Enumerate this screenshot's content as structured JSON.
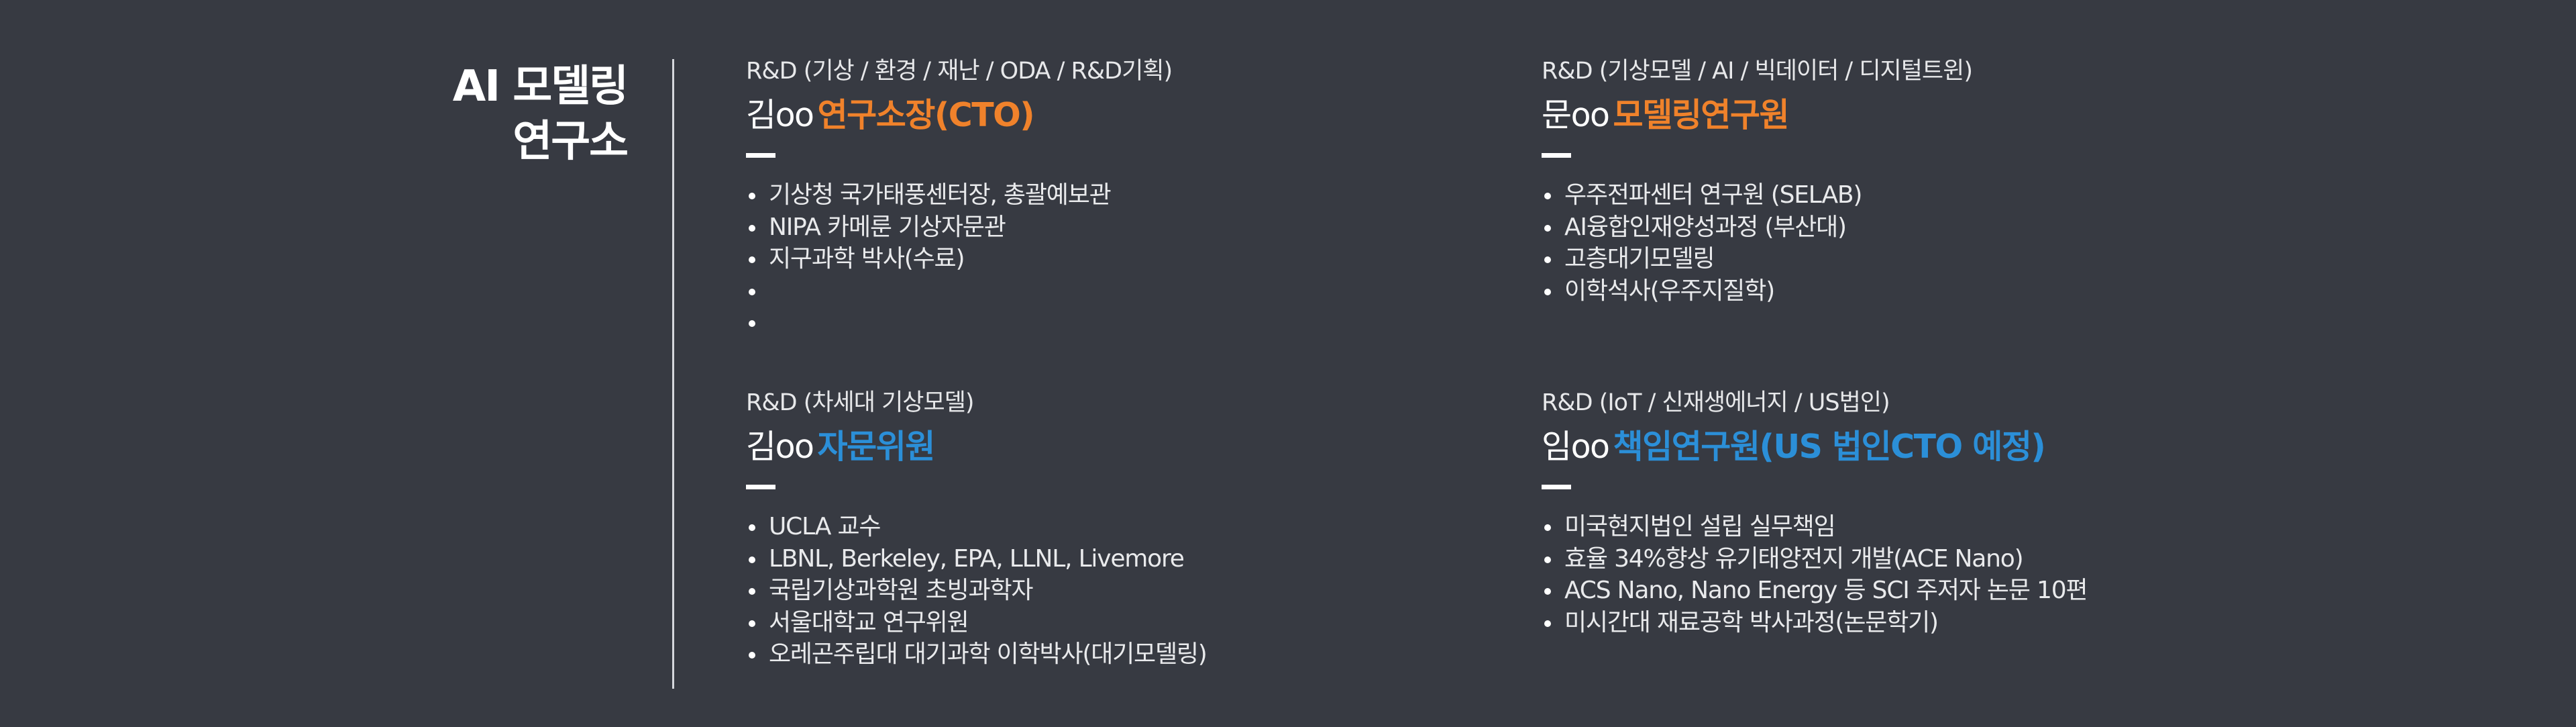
{
  "section": {
    "title_line1": "AI 모델링",
    "title_line2": "연구소"
  },
  "people": [
    {
      "category": "R&D (기상 / 환경 / 재난 / ODA / R&D기획)",
      "name": "김oo",
      "role": "연구소장(CTO)",
      "role_color": "#f0822b",
      "items": [
        "기상청 국가태풍센터장, 총괄예보관",
        "NIPA 카메룬 기상자문관",
        "지구과학 박사(수료)",
        "",
        ""
      ]
    },
    {
      "category": "R&D (기상모델 / AI /  빅데이터 / 디지털트윈)",
      "name": "문oo",
      "role": "모델링연구원",
      "role_color": "#f0822b",
      "items": [
        "우주전파센터 연구원 (SELAB)",
        "AI융합인재양성과정 (부산대)",
        "고층대기모델링",
        "이학석사(우주지질학)"
      ]
    },
    {
      "category": "R&D (차세대 기상모델)",
      "name": "김oo",
      "role": "자문위원",
      "role_color": "#2b8fd8",
      "items": [
        "UCLA 교수",
        "LBNL, Berkeley, EPA, LLNL, Livemore",
        "국립기상과학원 초빙과학자",
        "서울대학교 연구위원",
        "오레곤주립대 대기과학 이학박사(대기모델링)"
      ]
    },
    {
      "category": "R&D (IoT / 신재생에너지  / US법인)",
      "name": "임oo",
      "role": "책임연구원(US 법인CTO 예정)",
      "role_color": "#2b8fd8",
      "items": [
        "미국현지법인 설립 실무책임",
        "효율 34%향상 유기태양전지 개발(ACE Nano)",
        "ACS Nano, Nano Energy 등 SCI 주저자 논문 10편",
        "미시간대 재료공학 박사과정(논문학기)"
      ]
    }
  ]
}
